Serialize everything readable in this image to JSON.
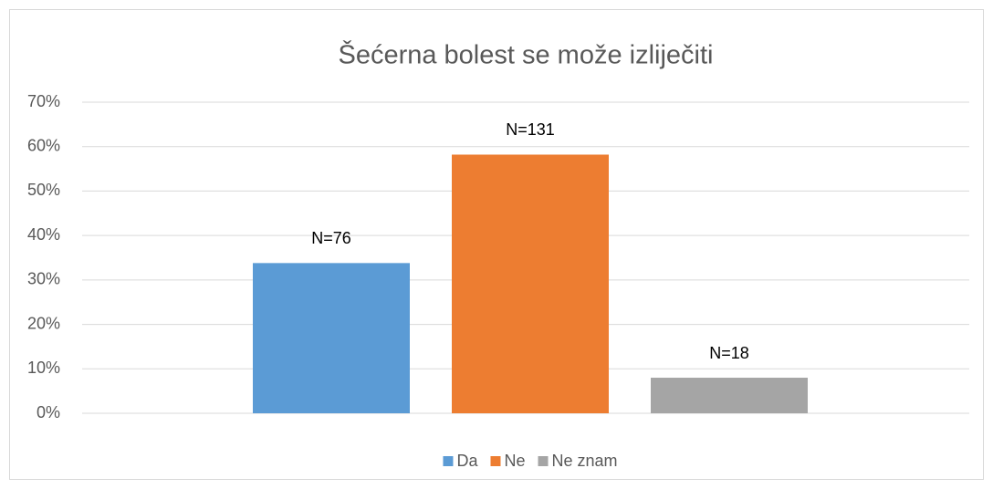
{
  "chart_data": {
    "type": "bar",
    "title": "Šećerna bolest se može izliječiti",
    "categories": [
      null
    ],
    "series": [
      {
        "name": "Da",
        "color": "#5b9bd5",
        "values": [
          33.8
        ],
        "label": "N=76"
      },
      {
        "name": "Ne",
        "color": "#ed7d31",
        "values": [
          58.2
        ],
        "label": "N=131"
      },
      {
        "name": "Ne znam",
        "color": "#a5a5a5",
        "values": [
          8.0
        ],
        "label": "N=18"
      }
    ],
    "ylim": [
      0,
      70
    ],
    "yticks": [
      {
        "value": 0,
        "label": "0%"
      },
      {
        "value": 10,
        "label": "10%"
      },
      {
        "value": 20,
        "label": "20%"
      },
      {
        "value": 30,
        "label": "30%"
      },
      {
        "value": 40,
        "label": "40%"
      },
      {
        "value": 50,
        "label": "50%"
      },
      {
        "value": 60,
        "label": "60%"
      },
      {
        "value": 70,
        "label": "70%"
      }
    ],
    "grid": true,
    "legend": "bottom"
  }
}
